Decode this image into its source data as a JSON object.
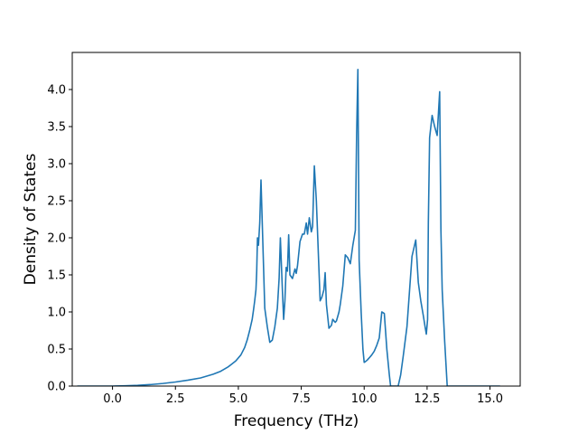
{
  "chart_data": {
    "type": "line",
    "xlabel": "Frequency (THz)",
    "ylabel": "Density of States",
    "xlim": [
      -1.6,
      16.2
    ],
    "ylim": [
      0.0,
      4.5
    ],
    "x_ticks": [
      0.0,
      2.5,
      5.0,
      7.5,
      10.0,
      12.5,
      15.0
    ],
    "x_tick_labels": [
      "0.0",
      "2.5",
      "5.0",
      "7.5",
      "10.0",
      "12.5",
      "15.0"
    ],
    "y_ticks": [
      0.0,
      0.5,
      1.0,
      1.5,
      2.0,
      2.5,
      3.0,
      3.5,
      4.0
    ],
    "y_tick_labels": [
      "0.0",
      "0.5",
      "1.0",
      "1.5",
      "2.0",
      "2.5",
      "3.0",
      "3.5",
      "4.0"
    ],
    "grid": false,
    "legend": "none",
    "series": [
      {
        "color": "#1f77b4",
        "x": [
          -1.4,
          0.0,
          0.5,
          1.0,
          1.5,
          2.0,
          2.5,
          3.0,
          3.5,
          4.0,
          4.3,
          4.6,
          4.9,
          5.1,
          5.25,
          5.35,
          5.45,
          5.55,
          5.6,
          5.65,
          5.7,
          5.73,
          5.76,
          5.8,
          5.85,
          5.9,
          6.05,
          6.15,
          6.25,
          6.35,
          6.45,
          6.55,
          6.62,
          6.67,
          6.75,
          6.8,
          6.85,
          6.9,
          6.95,
          7.0,
          7.05,
          7.15,
          7.25,
          7.3,
          7.35,
          7.45,
          7.55,
          7.62,
          7.7,
          7.75,
          7.82,
          7.9,
          7.95,
          8.02,
          8.1,
          8.2,
          8.25,
          8.32,
          8.4,
          8.45,
          8.5,
          8.6,
          8.7,
          8.75,
          8.85,
          8.9,
          9.0,
          9.05,
          9.15,
          9.25,
          9.35,
          9.45,
          9.55,
          9.65,
          9.7,
          9.75,
          9.8,
          9.88,
          9.95,
          10.0,
          10.05,
          10.12,
          10.2,
          10.3,
          10.4,
          10.5,
          10.6,
          10.7,
          10.8,
          10.9,
          11.0,
          11.05,
          11.1,
          11.15,
          11.25,
          11.35,
          11.45,
          11.55,
          11.7,
          11.9,
          12.05,
          12.15,
          12.25,
          12.35,
          12.42,
          12.47,
          12.52,
          12.55,
          12.6,
          12.7,
          12.8,
          12.9,
          13.0,
          13.05,
          13.1,
          13.2,
          13.3,
          13.35,
          13.42,
          13.5,
          13.55,
          13.6,
          13.7,
          13.8,
          13.88,
          13.95,
          14.0,
          14.5,
          15.0,
          15.4
        ],
        "y": [
          0.0,
          0.0,
          0.004,
          0.01,
          0.02,
          0.035,
          0.055,
          0.08,
          0.11,
          0.16,
          0.2,
          0.26,
          0.34,
          0.42,
          0.52,
          0.62,
          0.75,
          0.9,
          1.02,
          1.15,
          1.3,
          1.55,
          2.0,
          1.9,
          2.2,
          2.78,
          1.05,
          0.8,
          0.59,
          0.62,
          0.8,
          1.05,
          1.45,
          2.0,
          1.3,
          0.9,
          1.15,
          1.6,
          1.55,
          2.04,
          1.5,
          1.45,
          1.58,
          1.52,
          1.62,
          1.95,
          2.05,
          2.05,
          2.2,
          2.05,
          2.27,
          2.08,
          2.15,
          2.97,
          2.5,
          1.6,
          1.15,
          1.2,
          1.3,
          1.53,
          1.1,
          0.78,
          0.82,
          0.9,
          0.86,
          0.88,
          1.0,
          1.1,
          1.35,
          1.77,
          1.73,
          1.65,
          1.9,
          2.1,
          3.4,
          4.27,
          1.7,
          1.0,
          0.5,
          0.32,
          0.33,
          0.35,
          0.38,
          0.42,
          0.47,
          0.55,
          0.65,
          1.0,
          0.98,
          0.5,
          0.15,
          0.0,
          0.0,
          0.0,
          0.0,
          0.0,
          0.15,
          0.4,
          0.8,
          1.75,
          1.97,
          1.4,
          1.15,
          0.95,
          0.8,
          0.7,
          0.9,
          2.2,
          3.35,
          3.65,
          3.5,
          3.38,
          3.97,
          2.1,
          1.3,
          0.6,
          0.0,
          0.0,
          0.0,
          0.0,
          0.0,
          0.0,
          0.0,
          0.0,
          0.0,
          0.0,
          0.0,
          0.0,
          0.0,
          0.0
        ]
      }
    ]
  }
}
